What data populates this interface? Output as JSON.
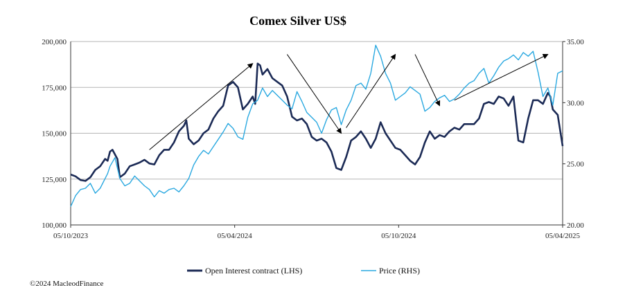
{
  "chart_data": {
    "type": "line",
    "title": "Comex Silver US$",
    "x_tick_labels": [
      "05/10/2023",
      "05/04/2024",
      "05/10/2024",
      "05/04/2025"
    ],
    "y_left": {
      "ylim": [
        100000,
        200000
      ],
      "tick_labels": [
        "100,000",
        "125,000",
        "150,000",
        "175,000",
        "200,000"
      ],
      "tick_values": [
        100000,
        125000,
        150000,
        175000,
        200000
      ]
    },
    "y_right": {
      "ylim": [
        20,
        35
      ],
      "tick_labels": [
        "20.00",
        "25.00",
        "30.00",
        "35.00"
      ],
      "tick_values": [
        20,
        25,
        30,
        35
      ]
    },
    "grid": true,
    "legend_position": "bottom",
    "series": [
      {
        "name": "Open Interest contract (LHS)",
        "axis": "left",
        "color": "#1b2a55",
        "points": [
          [
            0.0,
            127500
          ],
          [
            0.01,
            126500
          ],
          [
            0.02,
            124500
          ],
          [
            0.03,
            124000
          ],
          [
            0.04,
            126000
          ],
          [
            0.05,
            130000
          ],
          [
            0.06,
            132000
          ],
          [
            0.07,
            136000
          ],
          [
            0.075,
            135000
          ],
          [
            0.08,
            140000
          ],
          [
            0.085,
            141000
          ],
          [
            0.095,
            136000
          ],
          [
            0.1,
            126000
          ],
          [
            0.11,
            128000
          ],
          [
            0.12,
            132000
          ],
          [
            0.13,
            133000
          ],
          [
            0.14,
            134000
          ],
          [
            0.15,
            135500
          ],
          [
            0.16,
            133500
          ],
          [
            0.17,
            133000
          ],
          [
            0.18,
            138000
          ],
          [
            0.19,
            141000
          ],
          [
            0.2,
            141000
          ],
          [
            0.21,
            145000
          ],
          [
            0.22,
            151000
          ],
          [
            0.23,
            154000
          ],
          [
            0.235,
            157000
          ],
          [
            0.24,
            147000
          ],
          [
            0.25,
            144000
          ],
          [
            0.26,
            146000
          ],
          [
            0.27,
            150000
          ],
          [
            0.28,
            152000
          ],
          [
            0.29,
            158000
          ],
          [
            0.3,
            162000
          ],
          [
            0.31,
            165000
          ],
          [
            0.32,
            176000
          ],
          [
            0.33,
            178000
          ],
          [
            0.34,
            175000
          ],
          [
            0.35,
            163000
          ],
          [
            0.36,
            166000
          ],
          [
            0.37,
            170000
          ],
          [
            0.375,
            166000
          ],
          [
            0.38,
            188000
          ],
          [
            0.385,
            187000
          ],
          [
            0.39,
            182000
          ],
          [
            0.4,
            185000
          ],
          [
            0.41,
            180000
          ],
          [
            0.42,
            178000
          ],
          [
            0.43,
            176000
          ],
          [
            0.44,
            170000
          ],
          [
            0.45,
            159000
          ],
          [
            0.46,
            157000
          ],
          [
            0.47,
            158000
          ],
          [
            0.48,
            155000
          ],
          [
            0.49,
            148000
          ],
          [
            0.5,
            146000
          ],
          [
            0.51,
            147000
          ],
          [
            0.52,
            145000
          ],
          [
            0.53,
            140000
          ],
          [
            0.54,
            131000
          ],
          [
            0.55,
            130000
          ],
          [
            0.56,
            137000
          ],
          [
            0.57,
            146000
          ],
          [
            0.58,
            148000
          ],
          [
            0.59,
            151000
          ],
          [
            0.6,
            147000
          ],
          [
            0.61,
            142000
          ],
          [
            0.62,
            147000
          ],
          [
            0.63,
            156000
          ],
          [
            0.64,
            150000
          ],
          [
            0.65,
            146000
          ],
          [
            0.66,
            142000
          ],
          [
            0.67,
            141000
          ],
          [
            0.68,
            138000
          ],
          [
            0.69,
            135000
          ],
          [
            0.7,
            133000
          ],
          [
            0.71,
            137000
          ],
          [
            0.72,
            145000
          ],
          [
            0.73,
            151000
          ],
          [
            0.74,
            147000
          ],
          [
            0.75,
            149000
          ],
          [
            0.76,
            148000
          ],
          [
            0.77,
            151000
          ],
          [
            0.78,
            153000
          ],
          [
            0.79,
            152000
          ],
          [
            0.8,
            155000
          ],
          [
            0.81,
            155000
          ],
          [
            0.82,
            155000
          ],
          [
            0.83,
            158000
          ],
          [
            0.84,
            166000
          ],
          [
            0.85,
            167000
          ],
          [
            0.86,
            166000
          ],
          [
            0.87,
            170000
          ],
          [
            0.88,
            169000
          ],
          [
            0.89,
            165000
          ],
          [
            0.9,
            170000
          ],
          [
            0.91,
            146000
          ],
          [
            0.92,
            145000
          ],
          [
            0.93,
            158000
          ],
          [
            0.94,
            168000
          ],
          [
            0.95,
            168000
          ],
          [
            0.96,
            166000
          ],
          [
            0.97,
            172000
          ],
          [
            0.975,
            170000
          ],
          [
            0.98,
            163000
          ],
          [
            0.99,
            160000
          ],
          [
            1.0,
            143000
          ]
        ]
      },
      {
        "name": "Price (RHS)",
        "axis": "right",
        "color": "#29a8e0",
        "points": [
          [
            0.0,
            21.5
          ],
          [
            0.01,
            22.4
          ],
          [
            0.02,
            22.9
          ],
          [
            0.03,
            23.0
          ],
          [
            0.04,
            23.4
          ],
          [
            0.05,
            22.6
          ],
          [
            0.06,
            23.0
          ],
          [
            0.07,
            23.8
          ],
          [
            0.075,
            24.2
          ],
          [
            0.08,
            24.8
          ],
          [
            0.09,
            25.5
          ],
          [
            0.1,
            23.8
          ],
          [
            0.11,
            23.2
          ],
          [
            0.12,
            23.4
          ],
          [
            0.13,
            24.0
          ],
          [
            0.14,
            23.6
          ],
          [
            0.15,
            23.2
          ],
          [
            0.16,
            22.9
          ],
          [
            0.17,
            22.3
          ],
          [
            0.18,
            22.8
          ],
          [
            0.19,
            22.6
          ],
          [
            0.2,
            22.9
          ],
          [
            0.21,
            23.0
          ],
          [
            0.22,
            22.7
          ],
          [
            0.23,
            23.2
          ],
          [
            0.24,
            23.8
          ],
          [
            0.25,
            24.9
          ],
          [
            0.26,
            25.6
          ],
          [
            0.27,
            26.1
          ],
          [
            0.28,
            25.8
          ],
          [
            0.29,
            26.4
          ],
          [
            0.3,
            27.0
          ],
          [
            0.31,
            27.6
          ],
          [
            0.32,
            28.3
          ],
          [
            0.33,
            27.9
          ],
          [
            0.34,
            27.2
          ],
          [
            0.35,
            27.0
          ],
          [
            0.36,
            28.8
          ],
          [
            0.37,
            29.9
          ],
          [
            0.38,
            30.2
          ],
          [
            0.39,
            31.2
          ],
          [
            0.4,
            30.5
          ],
          [
            0.41,
            31.0
          ],
          [
            0.42,
            30.6
          ],
          [
            0.43,
            30.2
          ],
          [
            0.44,
            29.8
          ],
          [
            0.45,
            29.5
          ],
          [
            0.46,
            30.9
          ],
          [
            0.47,
            30.1
          ],
          [
            0.48,
            29.2
          ],
          [
            0.49,
            28.8
          ],
          [
            0.5,
            28.4
          ],
          [
            0.51,
            27.5
          ],
          [
            0.52,
            28.6
          ],
          [
            0.53,
            29.4
          ],
          [
            0.54,
            29.6
          ],
          [
            0.55,
            28.2
          ],
          [
            0.56,
            29.4
          ],
          [
            0.57,
            30.2
          ],
          [
            0.58,
            31.4
          ],
          [
            0.59,
            31.6
          ],
          [
            0.6,
            31.1
          ],
          [
            0.61,
            32.4
          ],
          [
            0.62,
            34.7
          ],
          [
            0.63,
            33.8
          ],
          [
            0.64,
            32.4
          ],
          [
            0.65,
            31.6
          ],
          [
            0.66,
            30.2
          ],
          [
            0.67,
            30.5
          ],
          [
            0.68,
            30.8
          ],
          [
            0.69,
            31.3
          ],
          [
            0.7,
            31.0
          ],
          [
            0.71,
            30.7
          ],
          [
            0.72,
            29.3
          ],
          [
            0.73,
            29.6
          ],
          [
            0.74,
            30.1
          ],
          [
            0.75,
            30.4
          ],
          [
            0.76,
            30.6
          ],
          [
            0.77,
            30.1
          ],
          [
            0.78,
            30.3
          ],
          [
            0.79,
            30.7
          ],
          [
            0.8,
            31.2
          ],
          [
            0.81,
            31.6
          ],
          [
            0.82,
            31.8
          ],
          [
            0.83,
            32.4
          ],
          [
            0.84,
            32.8
          ],
          [
            0.85,
            31.6
          ],
          [
            0.86,
            32.2
          ],
          [
            0.87,
            32.9
          ],
          [
            0.88,
            33.4
          ],
          [
            0.89,
            33.6
          ],
          [
            0.9,
            33.9
          ],
          [
            0.91,
            33.5
          ],
          [
            0.92,
            34.1
          ],
          [
            0.93,
            33.8
          ],
          [
            0.94,
            34.2
          ],
          [
            0.95,
            32.5
          ],
          [
            0.96,
            30.5
          ],
          [
            0.97,
            31.2
          ],
          [
            0.98,
            29.8
          ],
          [
            0.99,
            32.4
          ],
          [
            1.0,
            32.6
          ]
        ]
      }
    ],
    "trend_arrows": [
      {
        "from": [
          0.16,
          141000
        ],
        "to": [
          0.37,
          188000
        ]
      },
      {
        "from": [
          0.44,
          193000
        ],
        "to": [
          0.55,
          150000
        ]
      },
      {
        "from": [
          0.56,
          153000
        ],
        "to": [
          0.66,
          193000
        ]
      },
      {
        "from": [
          0.7,
          193000
        ],
        "to": [
          0.75,
          165000
        ]
      },
      {
        "from": [
          0.78,
          168000
        ],
        "to": [
          0.97,
          193000
        ]
      }
    ]
  },
  "legend": {
    "items": [
      {
        "label": "Open Interest contract (LHS)",
        "color": "#1b2a55"
      },
      {
        "label": "Price (RHS)",
        "color": "#29a8e0"
      }
    ]
  },
  "footer": {
    "copyright": "©2024 MacleodFinance"
  }
}
